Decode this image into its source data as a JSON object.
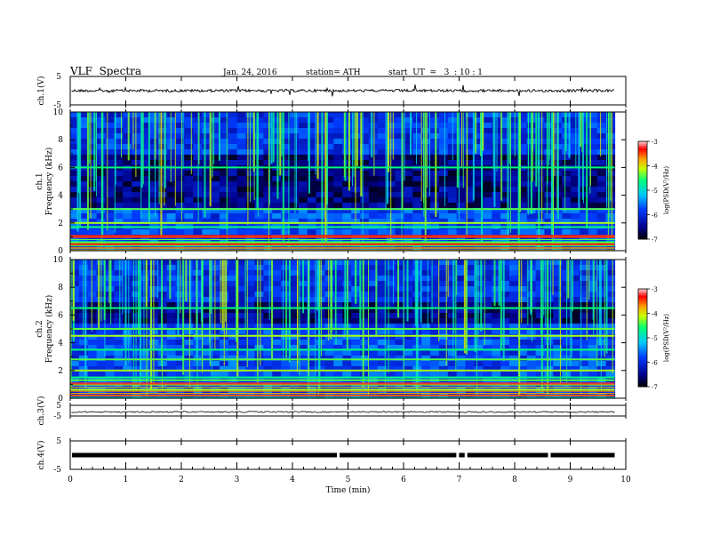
{
  "header": {
    "title": "VLF  Spectra",
    "date": "Jan. 24, 2016",
    "station": "station= ATH",
    "start": "start  UT  =   3  : 10 : 1"
  },
  "chart_data": [
    {
      "type": "line",
      "ylabel": "ch.1(V)",
      "ylim": [
        -5,
        5
      ],
      "y_ticklabels": [
        "5",
        "-5"
      ],
      "x_range": [
        0,
        10
      ],
      "signal_end_min": 9.8,
      "baseline_v": 0.0
    },
    {
      "type": "heatmap",
      "ylabel_line1": "ch.1",
      "ylabel_line2": "Frequency  (kHz)",
      "ylim": [
        0,
        10
      ],
      "y_ticks": [
        0,
        2,
        4,
        6,
        8,
        10
      ],
      "colorbar": {
        "label": "log(PSD(V²/Hz)",
        "range": [
          -7,
          -3
        ],
        "ticks": [
          -3,
          -4,
          -5,
          -6,
          -7
        ]
      },
      "strong_bands_khz": [
        6.0,
        3.0,
        2.0,
        1.7,
        1.0,
        0.6,
        0.4,
        0.2
      ],
      "quiet_region_khz": [
        3.0,
        6.0
      ]
    },
    {
      "type": "heatmap",
      "ylabel_line1": "ch.2",
      "ylabel_line2": "Frequency  (kHz)",
      "ylim": [
        0,
        10
      ],
      "y_ticks": [
        0,
        2,
        4,
        6,
        8,
        10
      ],
      "colorbar": {
        "label": "log(PSD(V²/Hz)",
        "range": [
          -7,
          -3
        ],
        "ticks": [
          -3,
          -4,
          -5,
          -6,
          -7
        ]
      },
      "strong_bands_khz": [
        6.5,
        5.0,
        4.5,
        3.5,
        2.8,
        2.0,
        1.5,
        1.3,
        1.0,
        0.6,
        0.2
      ],
      "quiet_region_khz": [
        5.5,
        7.0
      ]
    },
    {
      "type": "line",
      "ylabel": "ch.3(V)",
      "ylim": [
        -5,
        5
      ],
      "y_ticklabels": [
        "5",
        "-5"
      ],
      "signal_end_min": 9.8,
      "baseline_v": -1.2
    },
    {
      "type": "line",
      "ylabel": "ch.4(V)",
      "ylim": [
        -5,
        5
      ],
      "y_ticklabels": [
        "5",
        "-5"
      ],
      "signal_end_min": 9.8,
      "baseline_v": 0.0,
      "gaps_min": [
        4.8,
        6.95,
        7.1,
        8.6
      ]
    }
  ],
  "x_axis": {
    "label": "Time  (min)",
    "ticks": [
      "0",
      "1",
      "2",
      "3",
      "4",
      "5",
      "6",
      "7",
      "8",
      "9",
      "10"
    ],
    "range": [
      0,
      10
    ]
  }
}
